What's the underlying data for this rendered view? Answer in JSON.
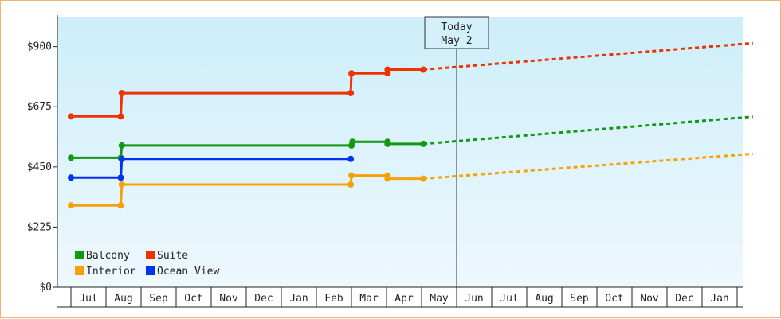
{
  "chart_data": {
    "type": "line",
    "step": true,
    "title": "",
    "xlabel": "",
    "ylabel": "",
    "ylim": [
      0,
      1012
    ],
    "yticks": [
      {
        "value": 0,
        "label": "$0"
      },
      {
        "value": 225,
        "label": "$225"
      },
      {
        "value": 450,
        "label": "$450"
      },
      {
        "value": 675,
        "label": "$675"
      },
      {
        "value": 900,
        "label": "$900"
      }
    ],
    "months": [
      "Jul",
      "Aug",
      "Sep",
      "Oct",
      "Nov",
      "Dec",
      "Jan",
      "Feb",
      "Mar",
      "Apr",
      "May",
      "Jun",
      "Jul",
      "Aug",
      "Sep",
      "Oct",
      "Nov",
      "Dec",
      "Jan"
    ],
    "x_start": "Jun 2",
    "today": {
      "line1": "Today",
      "line2": "May 2",
      "x": 11.0
    },
    "grid": false,
    "background_gradient": [
      "#cdeefa",
      "#eef8fd"
    ],
    "legend": {
      "placement": "bottom-left"
    },
    "series": [
      {
        "name": "Balcony",
        "color": "#119911",
        "points": [
          [
            0.0,
            484
          ],
          [
            1.42,
            484
          ],
          [
            1.45,
            530
          ],
          [
            8.0,
            530
          ],
          [
            8.03,
            544
          ],
          [
            9.03,
            544
          ],
          [
            9.03,
            536
          ],
          [
            10.05,
            536
          ]
        ],
        "forecast": [
          [
            10.05,
            536
          ],
          [
            19.45,
            638
          ]
        ]
      },
      {
        "name": "Suite",
        "color": "#ee3300",
        "points": [
          [
            0.0,
            639
          ],
          [
            1.42,
            639
          ],
          [
            1.45,
            726
          ],
          [
            7.98,
            726
          ],
          [
            8.0,
            800
          ],
          [
            9.03,
            800
          ],
          [
            9.03,
            814
          ],
          [
            10.05,
            814
          ]
        ],
        "forecast": [
          [
            10.05,
            814
          ],
          [
            19.45,
            913
          ]
        ]
      },
      {
        "name": "Interior",
        "color": "#f5a20a",
        "points": [
          [
            0.0,
            306
          ],
          [
            1.42,
            306
          ],
          [
            1.45,
            384
          ],
          [
            7.98,
            384
          ],
          [
            8.0,
            418
          ],
          [
            9.03,
            418
          ],
          [
            9.03,
            406
          ],
          [
            10.05,
            406
          ]
        ],
        "forecast": [
          [
            10.05,
            406
          ],
          [
            19.45,
            499
          ]
        ]
      },
      {
        "name": "Ocean View",
        "color": "#0033ee",
        "points": [
          [
            0.0,
            410
          ],
          [
            1.42,
            410
          ],
          [
            1.45,
            480
          ],
          [
            7.98,
            480
          ]
        ],
        "forecast": []
      }
    ]
  }
}
